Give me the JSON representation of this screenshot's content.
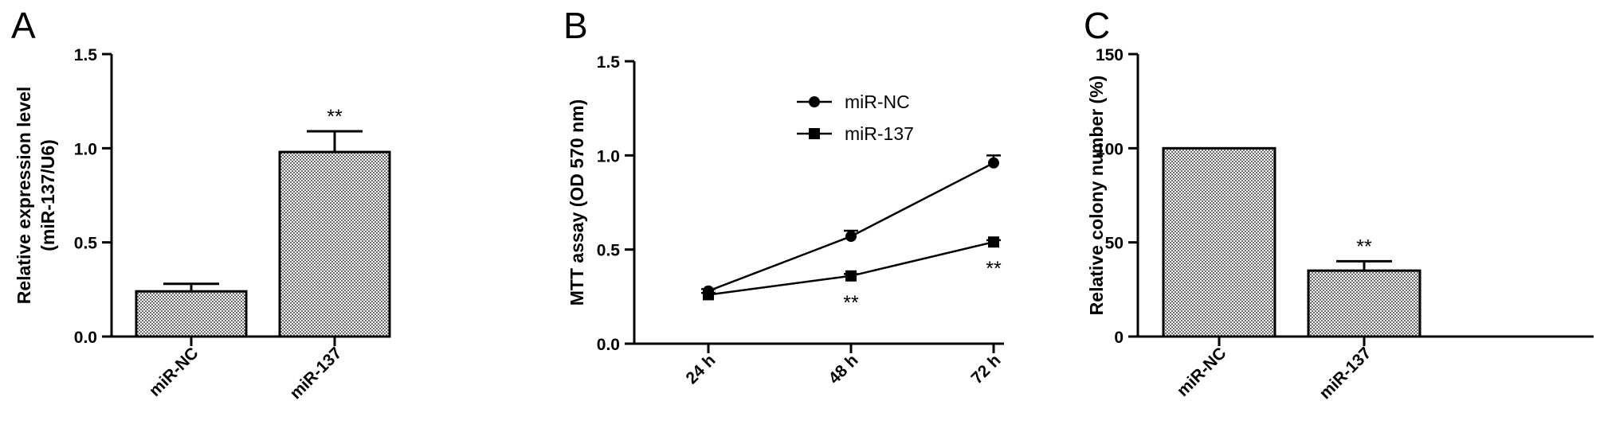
{
  "chart_data": [
    {
      "panel": "A",
      "type": "bar",
      "categories": [
        "miR-NC",
        "miR-137"
      ],
      "values": [
        0.24,
        0.98
      ],
      "errors": [
        0.04,
        0.11
      ],
      "significance": [
        "",
        "**"
      ],
      "ylabel": "Relative expression level",
      "ylabel2": "(miR-137/U6)",
      "ylim": [
        0,
        1.5
      ],
      "yticks": [
        "0.0",
        "0.5",
        "1.0",
        "1.5"
      ],
      "ytick_values": [
        0,
        0.5,
        1.0,
        1.5
      ],
      "bar_fill": "checkered grey",
      "grid": false
    },
    {
      "panel": "B",
      "type": "line",
      "x": [
        "24 h",
        "48 h",
        "72 h"
      ],
      "series": [
        {
          "name": "miR-NC",
          "marker": "circle",
          "values": [
            0.28,
            0.57,
            0.96
          ],
          "errors": [
            0.01,
            0.03,
            0.04
          ]
        },
        {
          "name": "miR-137",
          "marker": "square",
          "values": [
            0.26,
            0.36,
            0.54
          ],
          "errors": [
            0.01,
            0.01,
            0.01
          ]
        }
      ],
      "significance": [
        "",
        "**",
        "**"
      ],
      "ylabel": "MTT assay (OD 570 nm)",
      "ylim": [
        0,
        1.5
      ],
      "yticks": [
        "0.0",
        "0.5",
        "1.0",
        "1.5"
      ],
      "ytick_values": [
        0,
        0.5,
        1.0,
        1.5
      ],
      "legend": "top-center",
      "grid": false
    },
    {
      "panel": "C",
      "type": "bar",
      "categories": [
        "miR-NC",
        "miR-137"
      ],
      "values": [
        100,
        35
      ],
      "errors": [
        0,
        5
      ],
      "significance": [
        "",
        "**"
      ],
      "ylabel": "Relative colony number (%)",
      "ylim": [
        0,
        150
      ],
      "yticks": [
        "0",
        "50",
        "100",
        "150"
      ],
      "ytick_values": [
        0,
        50,
        100,
        150
      ],
      "bar_fill": "checkered grey",
      "grid": false
    }
  ]
}
